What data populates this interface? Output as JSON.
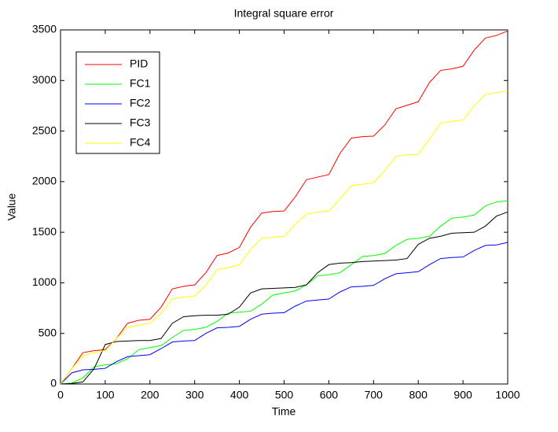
{
  "chart_data": {
    "type": "line",
    "title": "Integral square error",
    "x_label": "Time",
    "y_label": "Value",
    "x": [
      0,
      25,
      50,
      75,
      100,
      125,
      150,
      175,
      200,
      225,
      250,
      275,
      300,
      325,
      350,
      375,
      400,
      425,
      450,
      475,
      500,
      525,
      550,
      575,
      600,
      625,
      650,
      675,
      700,
      725,
      750,
      775,
      800,
      825,
      850,
      875,
      900,
      925,
      950,
      975,
      1000
    ],
    "series": [
      {
        "name": "PID",
        "color": "#ff0000",
        "values": [
          0,
          150,
          310,
          330,
          340,
          450,
          600,
          630,
          640,
          760,
          940,
          965,
          980,
          1100,
          1270,
          1295,
          1350,
          1550,
          1690,
          1705,
          1710,
          1850,
          2020,
          2045,
          2070,
          2280,
          2430,
          2445,
          2450,
          2560,
          2720,
          2755,
          2790,
          2980,
          3100,
          3115,
          3140,
          3300,
          3420,
          3445,
          3490
        ]
      },
      {
        "name": "FC1",
        "color": "#00ff00",
        "values": [
          0,
          10,
          60,
          170,
          190,
          200,
          250,
          340,
          360,
          380,
          460,
          530,
          540,
          560,
          620,
          700,
          710,
          720,
          790,
          880,
          900,
          920,
          980,
          1070,
          1080,
          1100,
          1180,
          1260,
          1270,
          1290,
          1370,
          1430,
          1440,
          1460,
          1560,
          1640,
          1650,
          1670,
          1760,
          1800,
          1810
        ]
      },
      {
        "name": "FC2",
        "color": "#0000ff",
        "values": [
          0,
          110,
          140,
          145,
          155,
          220,
          270,
          280,
          290,
          350,
          415,
          425,
          430,
          500,
          555,
          560,
          570,
          640,
          690,
          700,
          705,
          770,
          820,
          830,
          840,
          910,
          960,
          965,
          975,
          1040,
          1090,
          1100,
          1110,
          1180,
          1240,
          1250,
          1255,
          1320,
          1370,
          1375,
          1400
        ]
      },
      {
        "name": "FC3",
        "color": "#000000",
        "values": [
          0,
          5,
          20,
          150,
          390,
          420,
          425,
          430,
          430,
          450,
          600,
          665,
          675,
          680,
          680,
          690,
          760,
          900,
          940,
          945,
          950,
          955,
          980,
          1100,
          1180,
          1195,
          1200,
          1210,
          1215,
          1220,
          1225,
          1240,
          1380,
          1440,
          1460,
          1490,
          1495,
          1500,
          1560,
          1660,
          1700
        ]
      },
      {
        "name": "FC4",
        "color": "#ffff00",
        "values": [
          0,
          150,
          280,
          310,
          330,
          450,
          560,
          580,
          600,
          700,
          840,
          860,
          870,
          980,
          1130,
          1150,
          1180,
          1330,
          1440,
          1450,
          1460,
          1580,
          1680,
          1700,
          1710,
          1830,
          1960,
          1975,
          1990,
          2110,
          2250,
          2265,
          2270,
          2420,
          2580,
          2595,
          2610,
          2750,
          2860,
          2880,
          2900
        ]
      }
    ],
    "xlim": [
      0,
      1000
    ],
    "xticks": [
      0,
      100,
      200,
      300,
      400,
      500,
      600,
      700,
      800,
      900,
      1000
    ],
    "ylim": [
      0,
      3500
    ],
    "yticks": [
      0,
      500,
      1000,
      1500,
      2000,
      2500,
      3000,
      3500
    ],
    "legend": "upper left",
    "grid": false
  }
}
